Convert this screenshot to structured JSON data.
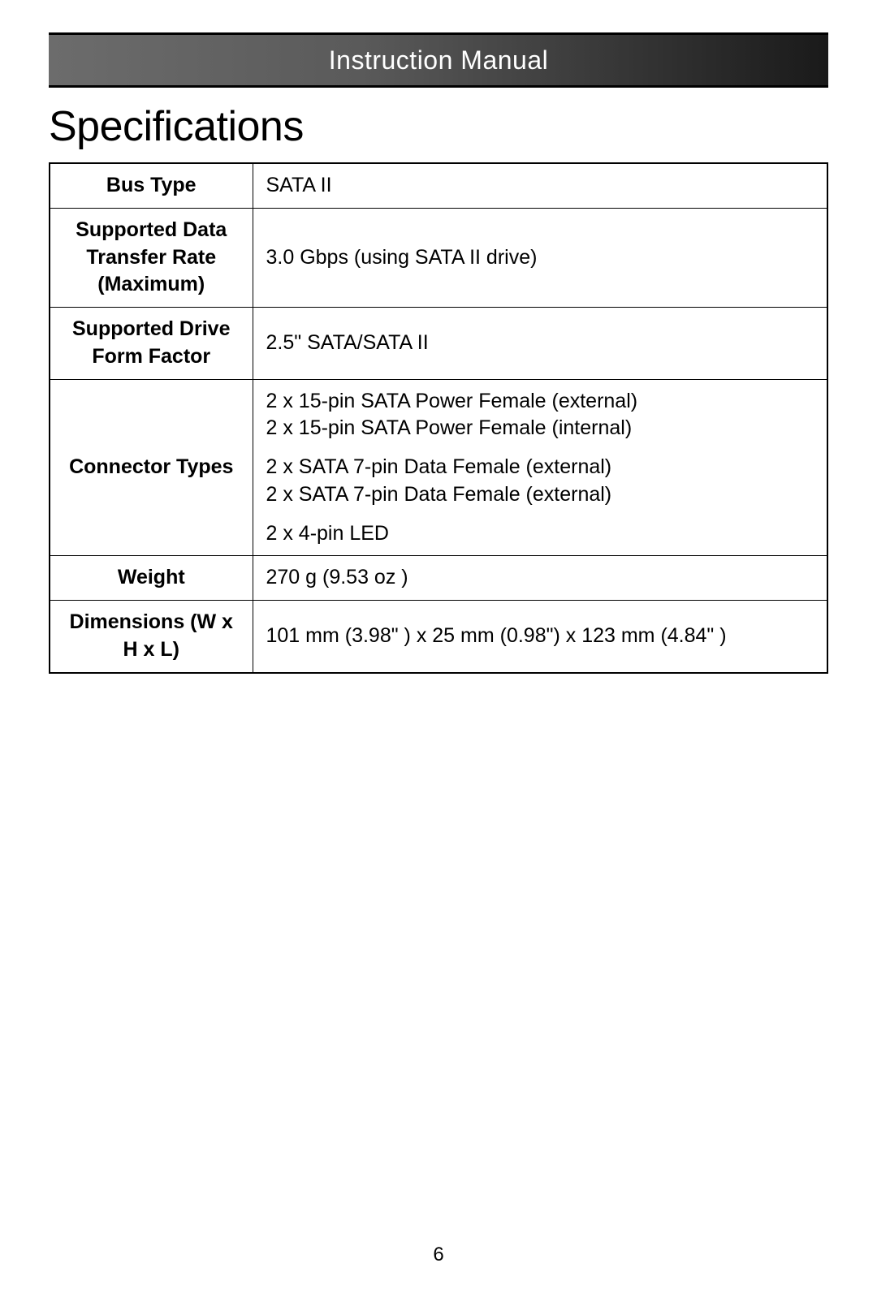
{
  "header": {
    "title": "Instruction Manual"
  },
  "section": {
    "title": "Specifications"
  },
  "specs": {
    "bus_type": {
      "label": "Bus Type",
      "value": "SATA II"
    },
    "transfer_rate": {
      "label": "Supported Data Transfer Rate (Maximum)",
      "value": "3.0 Gbps  (using SATA II drive)"
    },
    "form_factor": {
      "label": "Supported Drive Form Factor",
      "value": "2.5\" SATA/SATA II"
    },
    "connectors": {
      "label": "Connector Types",
      "g1l1": "2 x 15-pin SATA Power Female (external)",
      "g1l2": "2 x 15-pin SATA Power Female (internal)",
      "g2l1": "2 x SATA 7-pin Data Female (external)",
      "g2l2": "2 x SATA 7-pin Data Female (external)",
      "g3l1": "2 x 4-pin LED"
    },
    "weight": {
      "label": "Weight",
      "value": "270 g (9.53 oz )"
    },
    "dimensions": {
      "label": "Dimensions (W x H x L)",
      "value": "101 mm (3.98\" ) x 25 mm (0.98\") x 123 mm (4.84\" )"
    }
  },
  "page_number": "6"
}
